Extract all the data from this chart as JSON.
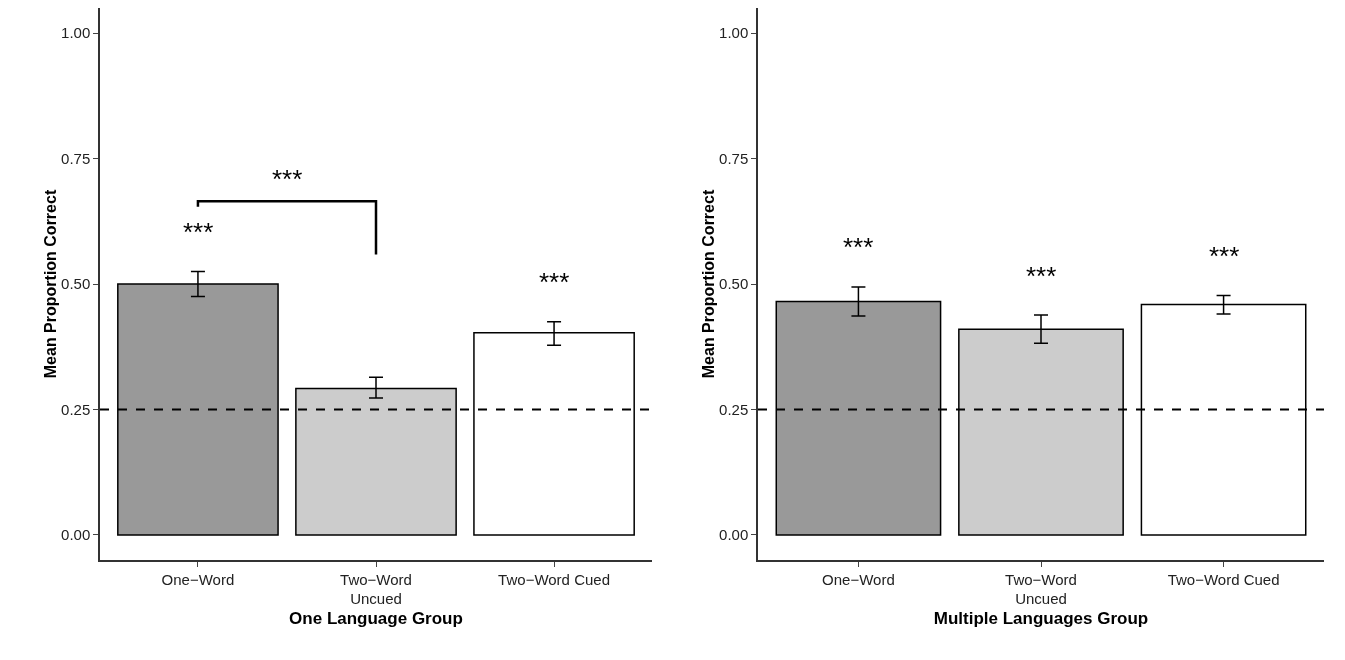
{
  "chart_data": [
    {
      "type": "bar",
      "xlabel": "One Language Group",
      "ylabel": "Mean Proportion Correct",
      "categories": [
        "One−Word",
        "Two−Word\nUncued",
        "Two−Word Cued"
      ],
      "values": [
        0.5,
        0.292,
        0.403
      ],
      "colors": [
        "#999999",
        "#cccccc",
        "#ffffff"
      ],
      "errors": [
        [
          0.475,
          0.525
        ],
        [
          0.273,
          0.314
        ],
        [
          0.378,
          0.425
        ]
      ],
      "ylim": [
        -0.05,
        1.05
      ],
      "yticks": [
        {
          "value": 0,
          "label": "0.00"
        },
        {
          "value": 0.25,
          "label": "0.25"
        },
        {
          "value": 0.5,
          "label": "0.50"
        },
        {
          "value": 0.75,
          "label": "0.75"
        },
        {
          "value": 1,
          "label": "1.00"
        }
      ],
      "ref_lines": [
        {
          "axis": "y",
          "value": 0.25,
          "line_style": "dashed",
          "color": "#000000"
        }
      ],
      "annotations": [
        "***",
        "***",
        "***"
      ]
    },
    {
      "type": "bar",
      "xlabel": "Multiple Languages Group",
      "ylabel": "Mean Proportion Correct",
      "categories": [
        "One−Word",
        "Two−Word\nUncued",
        "Two−Word Cued"
      ],
      "values": [
        0.465,
        0.41,
        0.459
      ],
      "colors": [
        "#999999",
        "#cccccc",
        "#ffffff"
      ],
      "errors": [
        [
          0.436,
          0.494
        ],
        [
          0.382,
          0.438
        ],
        [
          0.44,
          0.477
        ]
      ],
      "ylim": [
        -0.05,
        1.05
      ],
      "yticks": [
        {
          "value": 0,
          "label": "0.00"
        },
        {
          "value": 0.25,
          "label": "0.25"
        },
        {
          "value": 0.5,
          "label": "0.50"
        },
        {
          "value": 0.75,
          "label": "0.75"
        },
        {
          "value": 1,
          "label": "1.00"
        }
      ],
      "ref_lines": [
        {
          "axis": "y",
          "value": 0.25,
          "line_style": "dashed",
          "color": "#000000"
        }
      ],
      "annotations": [
        "***",
        "***",
        "***"
      ]
    }
  ]
}
